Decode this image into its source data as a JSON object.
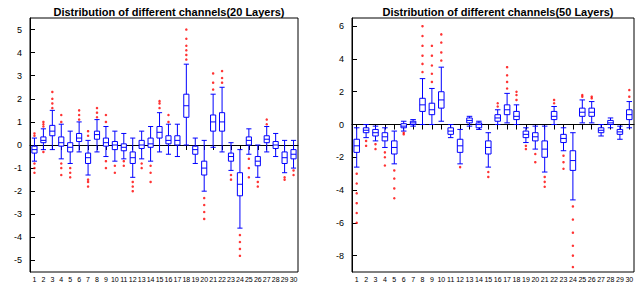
{
  "chart_data": [
    {
      "type": "boxplot",
      "title": "Distribution of different channels(20 Layers)",
      "categories": [
        "1",
        "2",
        "3",
        "4",
        "5",
        "6",
        "7",
        "8",
        "9",
        "10",
        "11",
        "12",
        "13",
        "14",
        "15",
        "16",
        "17",
        "18",
        "19",
        "20",
        "21",
        "22",
        "23",
        "24",
        "25",
        "26",
        "27",
        "28",
        "29",
        "30"
      ],
      "ylim": [
        -5.5,
        5.5
      ],
      "yticks": [
        -5,
        -4,
        -3,
        -2,
        -1,
        0,
        1,
        2,
        3,
        4,
        5
      ],
      "grid": false,
      "series": [
        {
          "type": "boxplot",
          "color": "#0000ff",
          "values": [
            [
              -0.7,
              -0.35,
              -0.2,
              -0.05,
              0.3
            ],
            [
              -0.2,
              0.1,
              0.2,
              0.35,
              0.7
            ],
            [
              -0.2,
              0.4,
              0.6,
              0.85,
              1.5
            ],
            [
              -0.6,
              -0.05,
              0.1,
              0.35,
              0.9
            ],
            [
              -0.8,
              -0.3,
              -0.1,
              0.1,
              0.6
            ],
            [
              -0.3,
              0.15,
              0.3,
              0.5,
              1.0
            ],
            [
              -1.3,
              -0.8,
              -0.55,
              -0.35,
              0.2
            ],
            [
              -0.3,
              0.25,
              0.45,
              0.6,
              1.1
            ],
            [
              -0.5,
              -0.05,
              0.1,
              0.3,
              0.8
            ],
            [
              -0.7,
              -0.2,
              0,
              0.15,
              0.6
            ],
            [
              -0.6,
              -0.25,
              -0.1,
              0.05,
              0.5
            ],
            [
              -1.4,
              -0.8,
              -0.55,
              -0.3,
              0.3
            ],
            [
              -0.6,
              -0.15,
              0,
              0.2,
              0.6
            ],
            [
              -0.7,
              -0.1,
              0.05,
              0.3,
              0.8
            ],
            [
              -0.3,
              0.3,
              0.55,
              0.8,
              1.4
            ],
            [
              -0.4,
              0.05,
              0.2,
              0.4,
              0.9
            ],
            [
              -0.5,
              0,
              0.2,
              0.4,
              0.9
            ],
            [
              0,
              1.2,
              1.7,
              2.2,
              3.5
            ],
            [
              -0.8,
              -0.4,
              -0.2,
              -0.05,
              0.3
            ],
            [
              -2.0,
              -1.3,
              -1.0,
              -0.7,
              0.2
            ],
            [
              -0.1,
              0.6,
              1.0,
              1.3,
              2.2
            ],
            [
              -0.3,
              0.6,
              1.0,
              1.4,
              2.5
            ],
            [
              -1.1,
              -0.7,
              -0.5,
              -0.35,
              0.1
            ],
            [
              -3.6,
              -2.2,
              -1.7,
              -1.2,
              -0.2
            ],
            [
              -0.4,
              0,
              0.2,
              0.35,
              0.7
            ],
            [
              -1.4,
              -0.9,
              -0.7,
              -0.5,
              0
            ],
            [
              -0.3,
              0.1,
              0.25,
              0.4,
              0.8
            ],
            [
              -0.5,
              -0.15,
              0,
              0.15,
              0.5
            ],
            [
              -1.2,
              -0.8,
              -0.55,
              -0.3,
              0.2
            ],
            [
              -1.0,
              -0.6,
              -0.4,
              -0.2,
              0.2
            ]
          ]
        },
        {
          "type": "scatter",
          "color": "#ff0000",
          "values": [
            [
              -0.8,
              -1.0,
              -1.2,
              0.4,
              0.5
            ],
            [
              -0.3,
              0.8,
              0.9,
              1.0
            ],
            [
              1.6,
              1.8,
              2.0,
              2.3
            ],
            [
              -0.8,
              -1.0,
              -1.3,
              1.0,
              1.3
            ],
            [
              -1.0,
              -1.2,
              -1.4
            ],
            [
              1.1,
              1.3,
              1.5
            ],
            [
              -1.5,
              -1.6,
              -1.8,
              0.4,
              0.6
            ],
            [
              1.2,
              1.4,
              1.6
            ],
            [
              -0.7,
              -1.0,
              1.0,
              1.3
            ],
            [
              -0.9,
              -1.2
            ],
            [
              -0.7,
              -0.9
            ],
            [
              -1.6,
              -1.8,
              -2.0
            ],
            [
              -0.8,
              -1.0
            ],
            [
              -0.9,
              -1.2,
              -1.6
            ],
            [
              1.6,
              1.8,
              1.9
            ],
            [
              1.0,
              1.3
            ],
            [],
            [
              3.7,
              3.9,
              4.1,
              4.3,
              4.6,
              5.0
            ],
            [],
            [
              -2.3,
              -2.6,
              -2.9,
              -3.2
            ],
            [
              2.4,
              2.7,
              3.1
            ],
            [
              2.7,
              2.9,
              3.2
            ],
            [
              -1.3,
              -1.5
            ],
            [
              -3.9,
              -4.2,
              -4.5,
              -4.8
            ],
            [
              -0.6,
              -1.0,
              -1.4
            ],
            [
              -1.6,
              -1.8
            ],
            [
              0.9,
              1.1
            ],
            [],
            [
              -1.4,
              -1.5
            ],
            [
              -1.1,
              -1.3
            ]
          ]
        }
      ]
    },
    {
      "type": "boxplot",
      "title": "Distribution of different channels(50 Layers)",
      "categories": [
        "1",
        "2",
        "3",
        "4",
        "5",
        "6",
        "7",
        "8",
        "9",
        "10",
        "11",
        "12",
        "13",
        "14",
        "15",
        "16",
        "17",
        "18",
        "19",
        "20",
        "21",
        "22",
        "23",
        "24",
        "25",
        "26",
        "27",
        "28",
        "29",
        "30"
      ],
      "ylim": [
        -9,
        6.5
      ],
      "yticks": [
        -8,
        -6,
        -4,
        -2,
        0,
        2,
        4,
        6
      ],
      "grid": false,
      "series": [
        {
          "type": "boxplot",
          "color": "#0000ff",
          "values": [
            [
              -2.6,
              -1.7,
              -1.3,
              -0.9,
              -0.2
            ],
            [
              -0.8,
              -0.5,
              -0.35,
              -0.2,
              0
            ],
            [
              -1.0,
              -0.7,
              -0.5,
              -0.3,
              -0.1
            ],
            [
              -1.4,
              -1.0,
              -0.75,
              -0.5,
              -0.2
            ],
            [
              -2.4,
              -1.8,
              -1.4,
              -1.0,
              -0.4
            ],
            [
              -0.4,
              -0.2,
              -0.1,
              0.05,
              0.2
            ],
            [
              -0.1,
              0,
              0.1,
              0.2,
              0.3
            ],
            [
              0,
              0.8,
              1.2,
              1.6,
              2.8
            ],
            [
              0,
              0.6,
              0.9,
              1.3,
              2.2
            ],
            [
              0.2,
              1.0,
              1.5,
              2.0,
              3.5
            ],
            [
              -0.8,
              -0.6,
              -0.4,
              -0.2,
              0
            ],
            [
              -2.4,
              -1.7,
              -1.3,
              -0.9,
              -0.3
            ],
            [
              -0.1,
              0.1,
              0.25,
              0.4,
              0.5
            ],
            [
              -0.3,
              -0.2,
              0,
              0.1,
              0.2
            ],
            [
              -2.6,
              -1.8,
              -1.4,
              -1.0,
              -0.5
            ],
            [
              0,
              0.2,
              0.4,
              0.6,
              0.9
            ],
            [
              0.1,
              0.6,
              0.9,
              1.2,
              1.9
            ],
            [
              0,
              0.3,
              0.5,
              0.8,
              1.2
            ],
            [
              -1.1,
              -0.8,
              -0.6,
              -0.4,
              -0.2
            ],
            [
              -1.5,
              -1.0,
              -0.75,
              -0.5,
              -0.1
            ],
            [
              -2.9,
              -2.0,
              -1.5,
              -1.0,
              -0.1
            ],
            [
              0,
              0.3,
              0.5,
              0.8,
              1.1
            ],
            [
              -1.6,
              -1.1,
              -0.85,
              -0.6,
              -0.2
            ],
            [
              -4.6,
              -2.8,
              -2.2,
              -1.6,
              -0.5
            ],
            [
              0.1,
              0.5,
              0.75,
              1.0,
              1.5
            ],
            [
              0.1,
              0.5,
              0.75,
              1.0,
              1.4
            ],
            [
              -0.7,
              -0.5,
              -0.35,
              -0.2,
              0
            ],
            [
              -0.2,
              0,
              0.1,
              0.25,
              0.4
            ],
            [
              -0.9,
              -0.6,
              -0.45,
              -0.3,
              -0.1
            ],
            [
              -0.2,
              0.3,
              0.6,
              0.9,
              1.4
            ]
          ]
        },
        {
          "type": "scatter",
          "color": "#ff0000",
          "values": [
            [
              -3.0,
              -3.6,
              -4.2,
              -4.8,
              -5.4,
              -6.0
            ],
            [
              -1.0,
              -1.3
            ],
            [
              -1.2,
              -1.5
            ],
            [
              -1.7,
              -2.0,
              -2.5
            ],
            [
              -2.8,
              -3.3,
              -3.9,
              -4.5
            ],
            [
              -0.5,
              -0.6
            ],
            [],
            [
              3.2,
              3.7,
              4.2,
              4.8,
              5.4,
              6.0
            ],
            [
              2.6,
              3.1,
              3.6,
              4.2,
              4.8
            ],
            [
              3.9,
              4.4,
              5.0,
              5.5
            ],
            [],
            [
              -2.6
            ],
            [],
            [],
            [
              -2.9,
              -3.2
            ],
            [
              1.1,
              1.3
            ],
            [
              2.2,
              2.6,
              3.0,
              3.5
            ],
            [
              1.5,
              1.8,
              2.0
            ],
            [
              -1.3,
              -1.5
            ],
            [
              -1.8,
              -2.3
            ],
            [
              -3.2,
              -3.5,
              -3.8
            ],
            [
              1.3,
              1.5
            ],
            [
              -1.9,
              -2.3,
              -2.7
            ],
            [
              -5.0,
              -5.8,
              -6.6,
              -7.4,
              -8.0,
              -8.7
            ],
            [
              1.7,
              1.8
            ],
            [
              1.6,
              1.7
            ],
            [],
            [],
            [],
            [
              1.7,
              2.1
            ]
          ]
        }
      ]
    }
  ]
}
